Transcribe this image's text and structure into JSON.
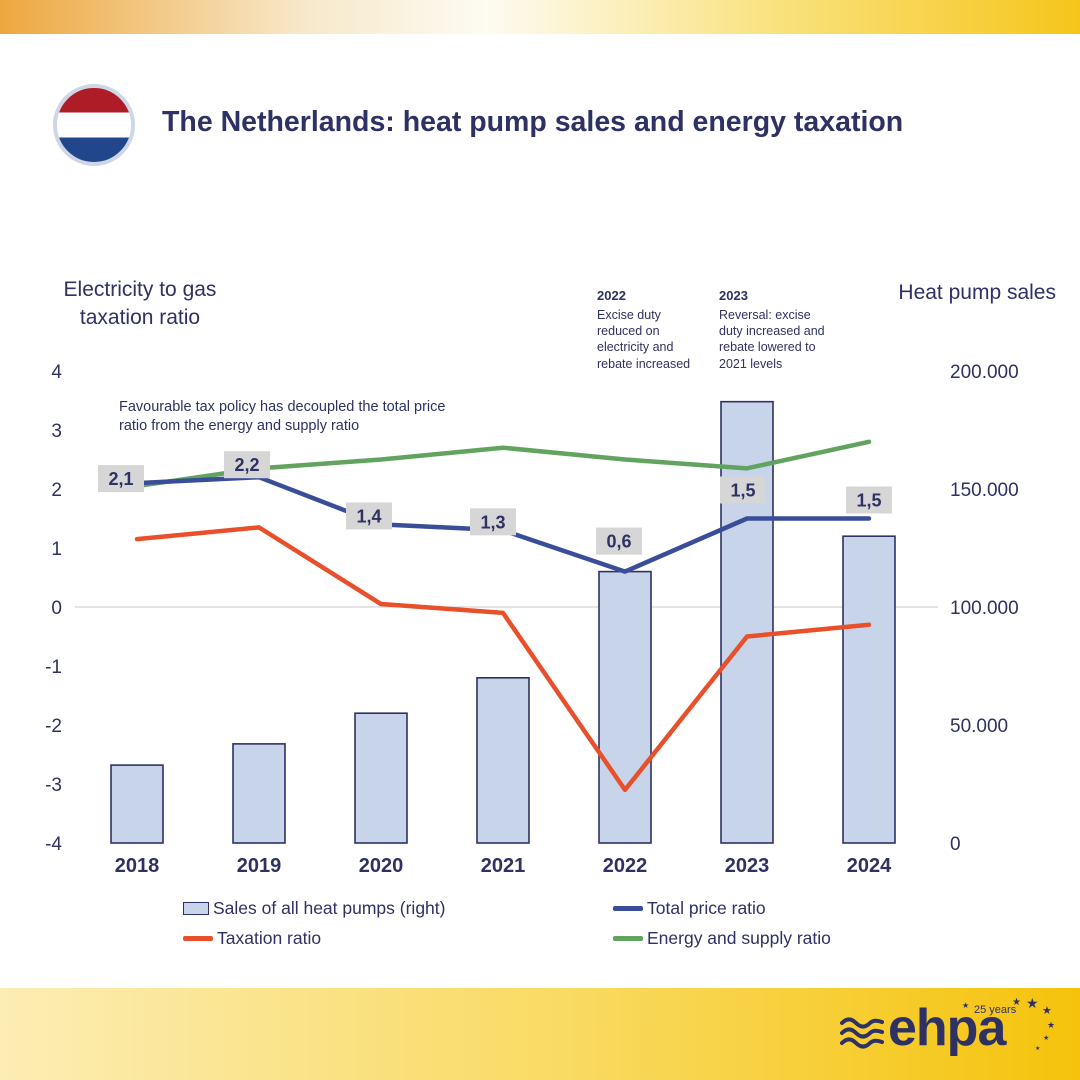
{
  "header": {
    "title": "The Netherlands: heat pump sales and energy taxation",
    "flag": "netherlands-flag"
  },
  "axis_titles": {
    "left_line1": "Electricity to gas",
    "left_line2": "taxation ratio",
    "right": "Heat pump sales"
  },
  "annotations": {
    "note": "Favourable tax policy has decoupled the total price ratio from the energy and supply ratio",
    "a2022": {
      "title": "2022",
      "body": "Excise duty reduced on electricity and rebate increased"
    },
    "a2023": {
      "title": "2023",
      "body": "Reversal: excise duty increased and rebate lowered to 2021 levels"
    }
  },
  "legend": {
    "bars": "Sales of all heat pumps (right)",
    "total_price": "Total price ratio",
    "taxation": "Taxation ratio",
    "energy_supply": "Energy and supply ratio"
  },
  "chart_data": {
    "type": "bar",
    "subtype": "bar-and-line-combo",
    "categories": [
      "2018",
      "2019",
      "2020",
      "2021",
      "2022",
      "2023",
      "2024"
    ],
    "left_axis": {
      "label": "Electricity to gas taxation ratio",
      "ticks": [
        4,
        3,
        2,
        1,
        0,
        -1,
        -2,
        -3,
        -4
      ],
      "range": [
        -4,
        4
      ],
      "grid": "zero-line-only"
    },
    "right_axis": {
      "label": "Heat pump sales",
      "ticks": [
        "200.000",
        "150.000",
        "100.000",
        "50.000",
        "0"
      ],
      "range": [
        0,
        200000
      ]
    },
    "bars": {
      "name": "Sales of all heat pumps (right)",
      "axis": "right",
      "values": [
        33000,
        42000,
        55000,
        70000,
        115000,
        187000,
        130000
      ]
    },
    "lines": [
      {
        "key": "total_price",
        "name": "Total price ratio",
        "color": "#3a4d99",
        "values": [
          2.1,
          2.2,
          1.4,
          1.3,
          0.6,
          1.5,
          1.5
        ],
        "labels": [
          "2,1",
          "2,2",
          "1,4",
          "1,3",
          "0,6",
          "1,5",
          "1,5"
        ]
      },
      {
        "key": "taxation",
        "name": "Taxation ratio",
        "color": "#e8502b",
        "values": [
          1.15,
          1.35,
          0.05,
          -0.1,
          -3.1,
          -0.5,
          -0.3
        ]
      },
      {
        "key": "energy_supply",
        "name": "Energy and supply ratio",
        "color": "#61a35f",
        "values": [
          2.05,
          2.35,
          2.5,
          2.7,
          2.5,
          2.35,
          2.8
        ]
      }
    ],
    "colors": {
      "bar_fill": "#c8d4ea",
      "navy": "#2e3163",
      "label_box": "#d6d6d6",
      "zero_line": "#c9c9c9"
    },
    "legend_position": "bottom"
  },
  "footer": {
    "brand": "ehpa",
    "anniversary": "25 years"
  }
}
